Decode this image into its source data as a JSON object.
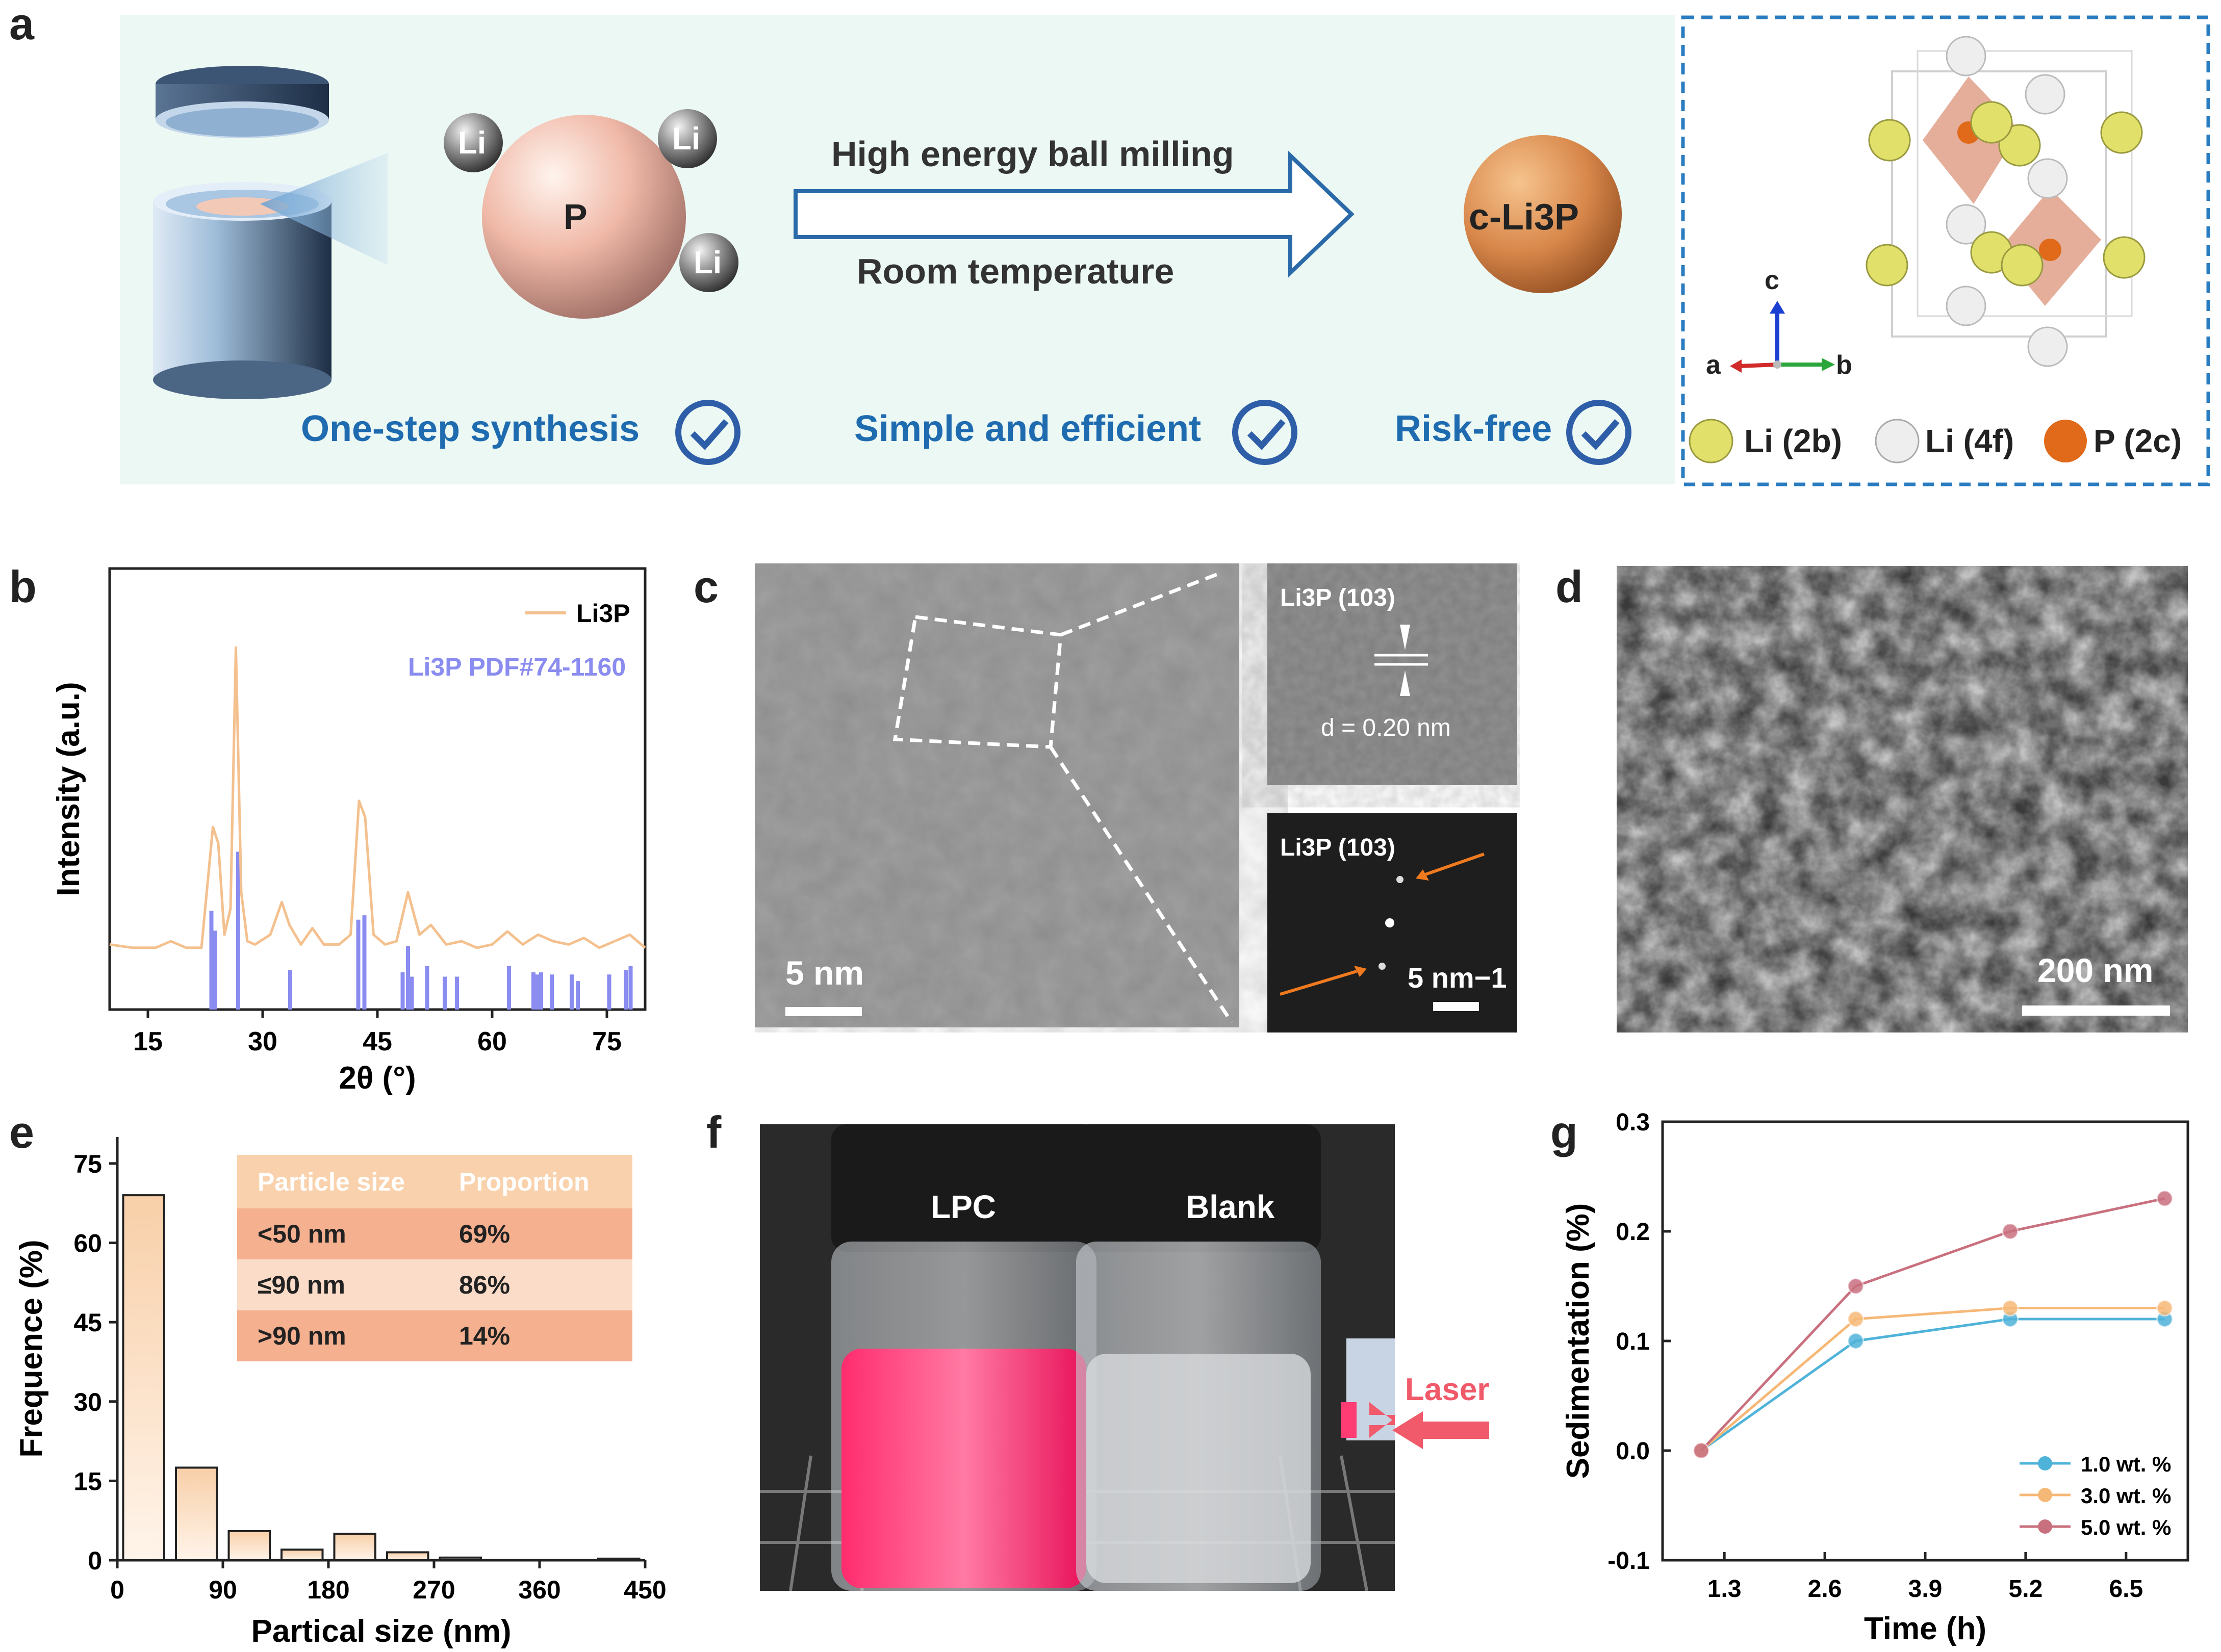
{
  "panel_labels": {
    "a": "a",
    "b": "b",
    "c": "c",
    "d": "d",
    "e": "e",
    "f": "f",
    "g": "g"
  },
  "panel_a": {
    "atom_center": "P",
    "atom_satellite": "Li",
    "arrow_top": "High energy ball milling",
    "arrow_bottom": "Room temperature",
    "product": "c-Li3P",
    "features": [
      "One-step synthesis",
      "Simple and efficient",
      "Risk-free"
    ],
    "axes": {
      "c": "c",
      "a": "a",
      "b": "b"
    },
    "legend": [
      {
        "label": "Li (2b)",
        "color": "#d8d86a"
      },
      {
        "label": "Li (4f)",
        "color": "#e6e6e6"
      },
      {
        "label": "P (2c)",
        "color": "#e06a1a"
      }
    ],
    "colors": {
      "background": "#ecf8f4",
      "accent_blue": "#1f6bb0",
      "dashed_border": "#2a7cc0"
    }
  },
  "panel_c": {
    "main_scale": "5 nm",
    "inset_top_label": "Li3P (103)",
    "inset_top_d": "d = 0.20 nm",
    "inset_bottom_label": "Li3P (103)",
    "inset_bottom_scale": "5 nm−1"
  },
  "panel_d": {
    "scale": "200 nm"
  },
  "panel_f": {
    "left_label": "LPC",
    "right_label": "Blank",
    "laser_label": "Laser",
    "laser_color": "#f05a6a"
  },
  "chart_data": [
    {
      "panel": "b",
      "type": "line",
      "xlabel": "2θ (°)",
      "ylabel": "Intensity (a.u.)",
      "xlim": [
        10,
        80
      ],
      "xticks": [
        15,
        30,
        45,
        60,
        75
      ],
      "legend_placement": "top-right",
      "series": [
        {
          "name": "Li3P",
          "color": "#f3c08e",
          "x": [
            10,
            13,
            16,
            18,
            20,
            22,
            23.5,
            24.2,
            25,
            25.8,
            26.5,
            27.2,
            28,
            29,
            31,
            32.5,
            33.5,
            35,
            36.5,
            38,
            40,
            41.5,
            42.6,
            43.4,
            44.5,
            46,
            47.5,
            49,
            50.5,
            52,
            54,
            56,
            58,
            60,
            62,
            64,
            66,
            68,
            70,
            72,
            74,
            76,
            78,
            80
          ],
          "y": [
            0.09,
            0.08,
            0.08,
            0.1,
            0.08,
            0.08,
            0.45,
            0.4,
            0.12,
            0.2,
            1.0,
            0.25,
            0.1,
            0.09,
            0.12,
            0.22,
            0.15,
            0.09,
            0.14,
            0.09,
            0.09,
            0.12,
            0.53,
            0.48,
            0.12,
            0.09,
            0.1,
            0.25,
            0.12,
            0.15,
            0.09,
            0.1,
            0.08,
            0.09,
            0.13,
            0.09,
            0.12,
            0.1,
            0.09,
            0.11,
            0.08,
            0.1,
            0.12,
            0.08
          ]
        },
        {
          "name": "Li3P PDF#74-1160",
          "color": "#8a8cf0",
          "type": "stick",
          "x": [
            23.3,
            23.8,
            26.8,
            33.6,
            42.5,
            43.3,
            48.3,
            49.0,
            49.5,
            51.5,
            53.8,
            55.4,
            62.2,
            65.4,
            65.9,
            66.4,
            67.8,
            70.4,
            71.2,
            75.3,
            77.5,
            78.1
          ],
          "y": [
            0.45,
            0.36,
            0.72,
            0.18,
            0.41,
            0.43,
            0.17,
            0.29,
            0.15,
            0.2,
            0.15,
            0.15,
            0.2,
            0.17,
            0.16,
            0.17,
            0.16,
            0.16,
            0.13,
            0.16,
            0.18,
            0.2
          ]
        }
      ]
    },
    {
      "panel": "e",
      "type": "bar",
      "xlabel": "Partical size (nm)",
      "ylabel": "Frequence (%)",
      "xlim": [
        0,
        450
      ],
      "ylim": [
        0,
        80
      ],
      "xticks": [
        0,
        90,
        180,
        270,
        360,
        450
      ],
      "yticks": [
        0,
        15,
        30,
        45,
        60,
        75
      ],
      "bin_width": 45,
      "x": [
        22.5,
        67.5,
        112.5,
        157.5,
        202.5,
        247.5,
        292.5,
        337.5,
        382.5,
        427.5
      ],
      "values": [
        69,
        17.5,
        5.5,
        2,
        5,
        1.5,
        0.5,
        0,
        0,
        0.3
      ],
      "table": {
        "header": [
          "Particle size",
          "Proportion"
        ],
        "rows": [
          [
            "<50 nm",
            "69%"
          ],
          [
            "≤90 nm",
            "86%"
          ],
          [
            ">90 nm",
            "14%"
          ]
        ]
      }
    },
    {
      "panel": "g",
      "type": "line",
      "xlabel": "Time (h)",
      "ylabel": "Sedimentation (%)",
      "xlim": [
        0.5,
        7.3
      ],
      "ylim": [
        -0.1,
        0.3
      ],
      "xticks": [
        1.3,
        2.6,
        3.9,
        5.2,
        6.5
      ],
      "yticks": [
        -0.1,
        0.0,
        0.1,
        0.2,
        0.3
      ],
      "legend_placement": "bottom-right",
      "series": [
        {
          "name": "1.0 wt. %",
          "color": "#4fb3d9",
          "x": [
            1,
            3,
            5,
            7
          ],
          "y": [
            0.0,
            0.1,
            0.12,
            0.12
          ]
        },
        {
          "name": "3.0 wt. %",
          "color": "#f6b877",
          "x": [
            1,
            3,
            5,
            7
          ],
          "y": [
            0.0,
            0.12,
            0.13,
            0.13
          ]
        },
        {
          "name": "5.0 wt. %",
          "color": "#c9707f",
          "x": [
            1,
            3,
            5,
            7
          ],
          "y": [
            0.0,
            0.15,
            0.2,
            0.23
          ]
        }
      ]
    }
  ]
}
